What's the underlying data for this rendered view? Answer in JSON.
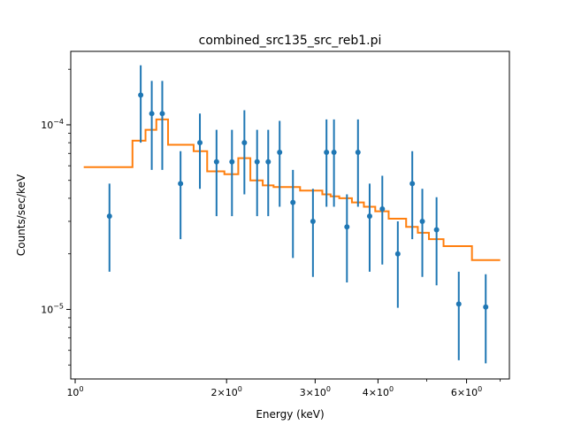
{
  "chart_data": {
    "type": "scatter",
    "title": "combined_src135_src_reb1.pi",
    "xlabel": "Energy (keV)",
    "ylabel": "Counts/sec/keV",
    "xscale": "log",
    "yscale": "log",
    "xlim": [
      0.98,
      7.3
    ],
    "ylim": [
      4.2e-06,
      0.00025
    ],
    "x_ticks": [
      {
        "value": 1,
        "label": "10^0",
        "base": "10",
        "exp": "0"
      },
      {
        "value": 2,
        "label": "2×10^0",
        "base": "2×10",
        "exp": "0"
      },
      {
        "value": 3,
        "label": "3×10^0",
        "base": "3×10",
        "exp": "0"
      },
      {
        "value": 4,
        "label": "4×10^0",
        "base": "4×10",
        "exp": "0"
      },
      {
        "value": 6,
        "label": "6×10^0",
        "base": "6×10",
        "exp": "0"
      }
    ],
    "y_ticks": [
      {
        "value": 1e-05,
        "label": "10^-5",
        "base": "10",
        "exp": "−5"
      },
      {
        "value": 0.0001,
        "label": "10^-4",
        "base": "10",
        "exp": "−4"
      }
    ],
    "colors": {
      "data": "#1f77b4",
      "model": "#ff7f0e"
    },
    "series": [
      {
        "kind": "errorbar",
        "x": [
          1.17,
          1.35,
          1.42,
          1.49,
          1.62,
          1.77,
          1.91,
          2.05,
          2.17,
          2.3,
          2.42,
          2.55,
          2.71,
          2.97,
          3.16,
          3.27,
          3.47,
          3.65,
          3.85,
          4.08,
          4.38,
          4.68,
          4.9,
          5.23,
          5.79,
          6.55
        ],
        "y": [
          3.2e-05,
          0.000145,
          0.000115,
          0.000115,
          4.8e-05,
          8e-05,
          6.3e-05,
          6.3e-05,
          8e-05,
          6.3e-05,
          6.3e-05,
          7.1e-05,
          3.8e-05,
          3e-05,
          7.1e-05,
          7.1e-05,
          2.8e-05,
          7.1e-05,
          3.2e-05,
          3.5e-05,
          2e-05,
          4.8e-05,
          3e-05,
          2.7e-05,
          1.07e-05,
          1.03e-05
        ],
        "y_low": [
          1.6e-05,
          8e-05,
          5.7e-05,
          5.7e-05,
          2.4e-05,
          4.5e-05,
          3.2e-05,
          3.2e-05,
          4.2e-05,
          3.2e-05,
          3.2e-05,
          3.6e-05,
          1.9e-05,
          1.5e-05,
          3.6e-05,
          3.6e-05,
          1.4e-05,
          3.6e-05,
          1.6e-05,
          1.75e-05,
          1.02e-05,
          2.4e-05,
          1.5e-05,
          1.35e-05,
          5.3e-06,
          5.1e-06
        ],
        "y_high": [
          4.8e-05,
          0.00021,
          0.000173,
          0.000173,
          7.2e-05,
          0.000115,
          9.4e-05,
          9.4e-05,
          0.00012,
          9.4e-05,
          9.4e-05,
          0.000105,
          5.7e-05,
          4.5e-05,
          0.000107,
          0.000107,
          4.2e-05,
          0.000107,
          4.8e-05,
          5.3e-05,
          3e-05,
          7.2e-05,
          4.5e-05,
          4.05e-05,
          1.6e-05,
          1.55e-05
        ]
      },
      {
        "kind": "step",
        "x_edges": [
          1.04,
          1.3,
          1.38,
          1.45,
          1.53,
          1.72,
          1.83,
          1.98,
          2.11,
          2.23,
          2.36,
          2.48,
          2.62,
          2.8,
          3.1,
          3.22,
          3.35,
          3.55,
          3.75,
          3.95,
          4.2,
          4.55,
          4.8,
          5.05,
          5.4,
          6.15,
          7.0
        ],
        "y": [
          5.9e-05,
          8.2e-05,
          9.4e-05,
          0.000107,
          7.8e-05,
          7.2e-05,
          5.6e-05,
          5.4e-05,
          6.6e-05,
          5e-05,
          4.7e-05,
          4.6e-05,
          4.6e-05,
          4.4e-05,
          4.2e-05,
          4.1e-05,
          4e-05,
          3.8e-05,
          3.6e-05,
          3.4e-05,
          3.1e-05,
          2.8e-05,
          2.6e-05,
          2.4e-05,
          2.2e-05,
          1.85e-05
        ]
      }
    ]
  }
}
